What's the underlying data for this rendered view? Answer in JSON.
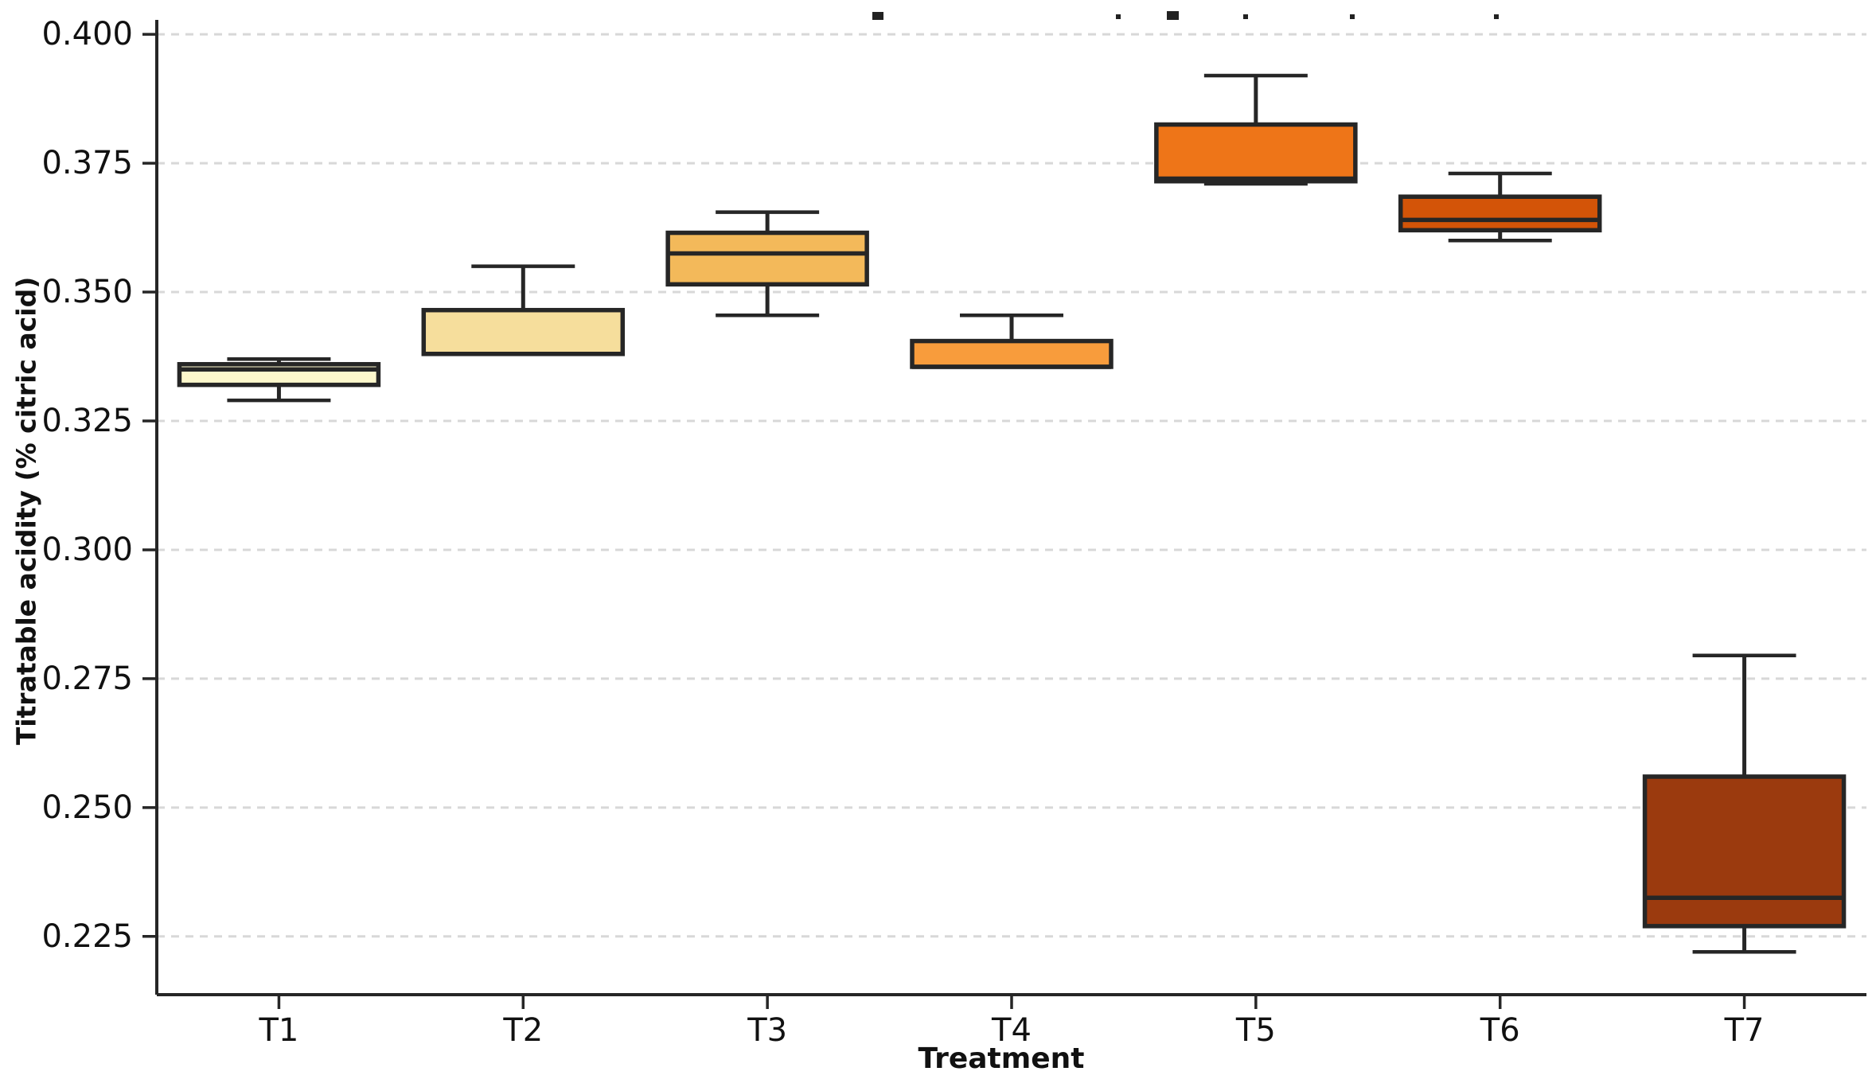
{
  "figure": {
    "background": "#ffffff"
  },
  "chart_data": {
    "type": "boxplot",
    "title": "",
    "xlabel": "Treatment",
    "ylabel": "Titratable acidity (% citric acid)",
    "categories": [
      "T1",
      "T2",
      "T3",
      "T4",
      "T5",
      "T6",
      "T7"
    ],
    "ylim": [
      0.2137,
      0.4028
    ],
    "ytick_values": [
      0.4,
      0.375,
      0.35,
      0.325,
      0.3,
      0.275,
      0.25,
      0.225
    ],
    "ytick_labels": [
      "0.400",
      "0.375",
      "0.350",
      "0.325",
      "0.300",
      "0.275",
      "0.250",
      "0.225"
    ],
    "grid": "horizontal-dashed",
    "grid_color": "#d8d8d8",
    "box_edge_color": "#262626",
    "series": [
      {
        "label": "T1",
        "color": "#fdf8cc",
        "whisker_low": 0.329,
        "q1": 0.332,
        "median": 0.335,
        "q3": 0.336,
        "whisker_high": 0.337
      },
      {
        "label": "T2",
        "color": "#f6de9c",
        "whisker_low": 0.338,
        "q1": 0.338,
        "median": 0.338,
        "q3": 0.3465,
        "whisker_high": 0.355
      },
      {
        "label": "T3",
        "color": "#f3b95a",
        "whisker_low": 0.3455,
        "q1": 0.3515,
        "median": 0.3575,
        "q3": 0.3615,
        "whisker_high": 0.3655
      },
      {
        "label": "T4",
        "color": "#f89c3c",
        "whisker_low": 0.3355,
        "q1": 0.3355,
        "median": 0.3355,
        "q3": 0.3405,
        "whisker_high": 0.3455
      },
      {
        "label": "T5",
        "color": "#ee7518",
        "whisker_low": 0.371,
        "q1": 0.3715,
        "median": 0.372,
        "q3": 0.3825,
        "whisker_high": 0.392
      },
      {
        "label": "T6",
        "color": "#d35408",
        "whisker_low": 0.36,
        "q1": 0.362,
        "median": 0.364,
        "q3": 0.3685,
        "whisker_high": 0.373
      },
      {
        "label": "T7",
        "color": "#9b3a0e",
        "whisker_low": 0.222,
        "q1": 0.227,
        "median": 0.2325,
        "q3": 0.256,
        "whisker_high": 0.2795
      }
    ]
  }
}
